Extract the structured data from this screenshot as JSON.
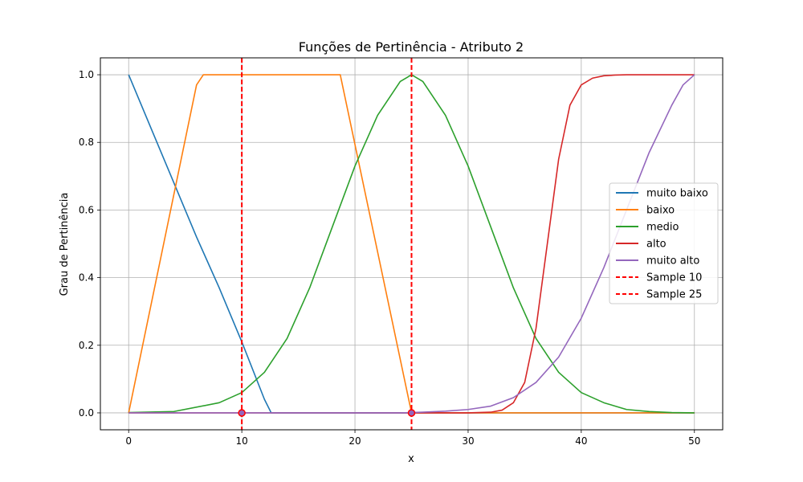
{
  "chart_data": {
    "type": "line",
    "title": "Funções de Pertinência - Atributo 2",
    "xlabel": "x",
    "ylabel": "Grau de Pertinência",
    "xlim": [
      -2.5,
      52.5
    ],
    "ylim": [
      -0.05,
      1.05
    ],
    "xticks": [
      0,
      10,
      20,
      30,
      40,
      50
    ],
    "yticks": [
      0.0,
      0.2,
      0.4,
      0.6,
      0.8,
      1.0
    ],
    "xtick_labels": [
      "0",
      "10",
      "20",
      "30",
      "40",
      "50"
    ],
    "ytick_labels": [
      "0.0",
      "0.2",
      "0.4",
      "0.6",
      "0.8",
      "1.0"
    ],
    "grid": true,
    "legend_position": "center-right",
    "series": [
      {
        "name": "muito baixo",
        "color": "#1f77b4",
        "style": "solid",
        "x": [
          0,
          2,
          4,
          6,
          8,
          10,
          12,
          12.6,
          50
        ],
        "y": [
          1.0,
          0.84,
          0.68,
          0.52,
          0.37,
          0.21,
          0.04,
          0.0,
          0.0
        ]
      },
      {
        "name": "baixo",
        "color": "#ff7f0e",
        "style": "solid",
        "x": [
          0,
          6.0,
          6.6,
          18.7,
          25.0,
          50
        ],
        "y": [
          0.0,
          0.97,
          1.0,
          1.0,
          0.0,
          0.0
        ]
      },
      {
        "name": "medio",
        "color": "#2ca02c",
        "style": "solid",
        "x": [
          0,
          4,
          8,
          10,
          12,
          14,
          16,
          18,
          20,
          22,
          24,
          25,
          26,
          28,
          30,
          32,
          34,
          36,
          38,
          40,
          42,
          44,
          46,
          48,
          50
        ],
        "y": [
          0.001,
          0.004,
          0.03,
          0.06,
          0.12,
          0.22,
          0.37,
          0.55,
          0.73,
          0.88,
          0.98,
          1.0,
          0.98,
          0.88,
          0.73,
          0.55,
          0.37,
          0.22,
          0.12,
          0.06,
          0.03,
          0.01,
          0.004,
          0.001,
          0.0
        ]
      },
      {
        "name": "alto",
        "color": "#d62728",
        "style": "solid",
        "x": [
          0,
          30,
          32,
          33,
          34,
          35,
          36,
          37,
          38,
          39,
          40,
          41,
          42,
          43,
          44,
          46,
          50
        ],
        "y": [
          0.0,
          0.0,
          0.002,
          0.008,
          0.03,
          0.09,
          0.25,
          0.5,
          0.75,
          0.91,
          0.97,
          0.99,
          0.997,
          0.999,
          1.0,
          1.0,
          1.0
        ]
      },
      {
        "name": "muito alto",
        "color": "#9467bd",
        "style": "solid",
        "x": [
          0,
          24,
          26,
          28,
          30,
          32,
          34,
          36,
          38,
          40,
          42,
          44,
          46,
          48,
          49,
          50
        ],
        "y": [
          0.0,
          0.0,
          0.002,
          0.005,
          0.01,
          0.02,
          0.045,
          0.09,
          0.165,
          0.28,
          0.43,
          0.6,
          0.77,
          0.91,
          0.97,
          1.0
        ]
      }
    ],
    "vlines": [
      {
        "name": "Sample 10",
        "x": 10,
        "color": "#ff0000",
        "style": "dashed"
      },
      {
        "name": "Sample 25",
        "x": 25,
        "color": "#ff0000",
        "style": "dashed"
      }
    ],
    "markers": [
      {
        "x": 10,
        "y": 0.0
      },
      {
        "x": 25,
        "y": 0.0
      }
    ]
  }
}
